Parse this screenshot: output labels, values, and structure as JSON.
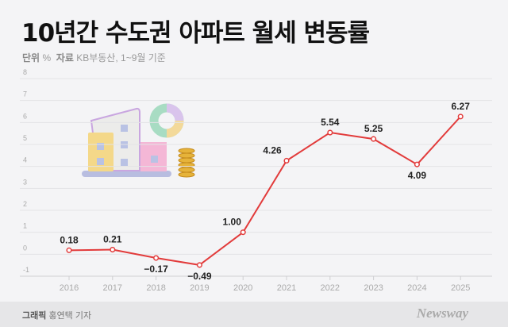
{
  "header": {
    "title": "10년간 수도권 아파트 월세 변동률",
    "unit_label": "단위",
    "unit": "%",
    "source_label": "자료",
    "source": "KB부동산, 1~9월 기준"
  },
  "footer": {
    "credit_label": "그래픽",
    "credit_name": "홍연택 기자",
    "brand": "Newsway"
  },
  "chart_data": {
    "type": "line",
    "title": "10년간 수도권 아파트 월세 변동률",
    "x": [
      "2016",
      "2017",
      "2018",
      "2019",
      "2020",
      "2021",
      "2022",
      "2023",
      "2024",
      "2025"
    ],
    "series": [
      {
        "values": [
          0.18,
          0.21,
          -0.17,
          -0.49,
          1.0,
          4.26,
          5.54,
          5.25,
          4.09,
          6.27
        ],
        "labels": [
          "0.18",
          "0.21",
          "-0.17",
          "-0.49",
          "1.00",
          "4.26",
          "5.54",
          "5.25",
          "4.09",
          "6.27"
        ]
      }
    ],
    "yticks": [
      "-1",
      "0",
      "1",
      "2",
      "3",
      "4",
      "5",
      "6",
      "7",
      "8"
    ],
    "ylim": [
      -1,
      8
    ],
    "grid": true,
    "color": "#e23b3b"
  }
}
